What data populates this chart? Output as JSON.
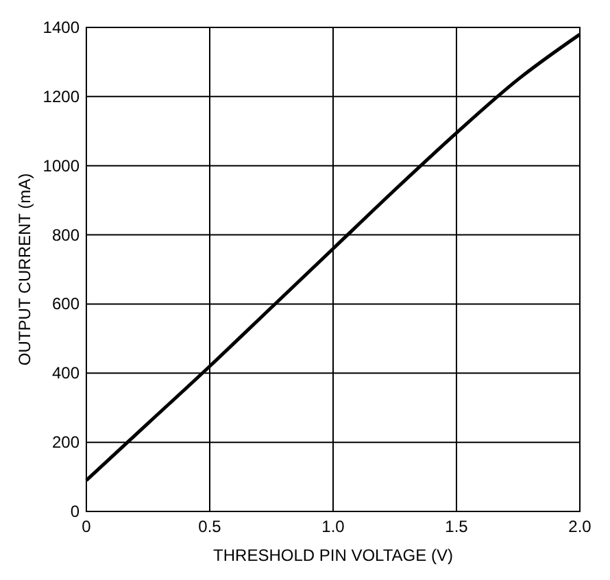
{
  "chart_data": {
    "type": "line",
    "xlabel": "THRESHOLD PIN VOLTAGE (V)",
    "ylabel": "OUTPUT CURRENT (mA)",
    "x": [
      0,
      0.25,
      0.5,
      0.75,
      1.0,
      1.25,
      1.5,
      1.75,
      2.0
    ],
    "series": [
      {
        "color": "#000000",
        "values": [
          90,
          255,
          420,
          590,
          760,
          930,
          1095,
          1250,
          1380
        ]
      }
    ],
    "xlim": [
      0,
      2.0
    ],
    "xticks": [
      0,
      0.5,
      {
        "value": 1.0,
        "label": "1.0"
      },
      1.5,
      {
        "value": 2.0,
        "label": "2.0"
      }
    ],
    "ylim": [
      0,
      1400
    ],
    "yticks": [
      0,
      200,
      400,
      600,
      800,
      1000,
      1200,
      1400
    ],
    "grid": true,
    "line_style": "solid"
  }
}
